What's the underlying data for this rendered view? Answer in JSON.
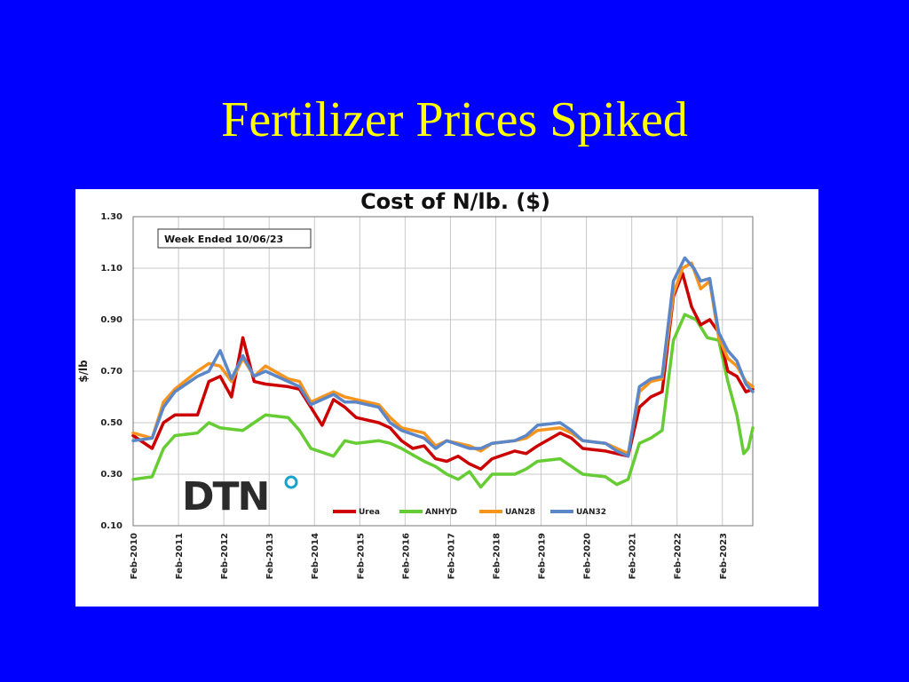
{
  "slide": {
    "title": "Fertilizer Prices Spiked",
    "background": "#0000ff",
    "title_color": "#ffff00"
  },
  "chart_data": {
    "type": "line",
    "title": "Cost of N/lb. ($)",
    "ylabel": "$/lb",
    "xlabel": "",
    "ylim": [
      0.1,
      1.3
    ],
    "y_ticks": [
      "1.30",
      "1.10",
      "0.90",
      "0.70",
      "0.50",
      "0.30",
      "0.10"
    ],
    "x_range": [
      2010.08,
      2023.75
    ],
    "x_ticks": [
      "Feb-2010",
      "Feb-2011",
      "Feb-2012",
      "Feb-2013",
      "Feb-2014",
      "Feb-2015",
      "Feb-2016",
      "Feb-2017",
      "Feb-2018",
      "Feb-2019",
      "Feb-2020",
      "Feb-2021",
      "Feb-2022",
      "Feb-2023"
    ],
    "annotation": "Week Ended 10/06/23",
    "logo": "DTN",
    "grid": true,
    "legend_position": "bottom-center",
    "series": [
      {
        "name": "Urea",
        "color": "#cc0000",
        "x": [
          2010.08,
          2010.5,
          2010.75,
          2011.0,
          2011.5,
          2011.75,
          2012.0,
          2012.25,
          2012.5,
          2012.75,
          2013.0,
          2013.5,
          2013.75,
          2014.0,
          2014.25,
          2014.5,
          2014.75,
          2015.0,
          2015.5,
          2015.75,
          2016.0,
          2016.25,
          2016.5,
          2016.75,
          2017.0,
          2017.25,
          2017.5,
          2017.75,
          2018.0,
          2018.5,
          2018.75,
          2019.0,
          2019.5,
          2019.75,
          2020.0,
          2020.5,
          2020.75,
          2021.0,
          2021.25,
          2021.5,
          2021.75,
          2022.0,
          2022.2,
          2022.4,
          2022.6,
          2022.8,
          2023.0,
          2023.2,
          2023.4,
          2023.6,
          2023.75
        ],
        "values": [
          0.45,
          0.4,
          0.5,
          0.53,
          0.53,
          0.66,
          0.68,
          0.6,
          0.83,
          0.66,
          0.65,
          0.64,
          0.63,
          0.56,
          0.49,
          0.59,
          0.56,
          0.52,
          0.5,
          0.48,
          0.43,
          0.4,
          0.41,
          0.36,
          0.35,
          0.37,
          0.34,
          0.32,
          0.36,
          0.39,
          0.38,
          0.41,
          0.46,
          0.44,
          0.4,
          0.39,
          0.38,
          0.37,
          0.56,
          0.6,
          0.62,
          0.99,
          1.08,
          0.95,
          0.88,
          0.9,
          0.85,
          0.7,
          0.68,
          0.62,
          0.63
        ]
      },
      {
        "name": "ANHYD",
        "color": "#66cc33",
        "x": [
          2010.08,
          2010.5,
          2010.75,
          2011.0,
          2011.5,
          2011.75,
          2012.0,
          2012.5,
          2012.75,
          2013.0,
          2013.5,
          2013.75,
          2014.0,
          2014.5,
          2014.75,
          2015.0,
          2015.5,
          2015.75,
          2016.0,
          2016.5,
          2016.75,
          2017.0,
          2017.25,
          2017.5,
          2017.75,
          2018.0,
          2018.5,
          2018.75,
          2019.0,
          2019.5,
          2019.75,
          2020.0,
          2020.5,
          2020.75,
          2021.0,
          2021.25,
          2021.5,
          2021.75,
          2022.0,
          2022.25,
          2022.5,
          2022.75,
          2023.0,
          2023.2,
          2023.4,
          2023.55,
          2023.65,
          2023.75
        ],
        "values": [
          0.28,
          0.29,
          0.4,
          0.45,
          0.46,
          0.5,
          0.48,
          0.47,
          0.5,
          0.53,
          0.52,
          0.47,
          0.4,
          0.37,
          0.43,
          0.42,
          0.43,
          0.42,
          0.4,
          0.35,
          0.33,
          0.3,
          0.28,
          0.31,
          0.25,
          0.3,
          0.3,
          0.32,
          0.35,
          0.36,
          0.33,
          0.3,
          0.29,
          0.26,
          0.28,
          0.42,
          0.44,
          0.47,
          0.82,
          0.92,
          0.9,
          0.83,
          0.82,
          0.66,
          0.53,
          0.38,
          0.4,
          0.48
        ]
      },
      {
        "name": "UAN28",
        "color": "#f7941d",
        "x": [
          2010.08,
          2010.5,
          2010.75,
          2011.0,
          2011.5,
          2011.75,
          2012.0,
          2012.25,
          2012.5,
          2012.75,
          2013.0,
          2013.5,
          2013.75,
          2014.0,
          2014.5,
          2014.75,
          2015.0,
          2015.5,
          2015.75,
          2016.0,
          2016.5,
          2016.75,
          2017.0,
          2017.5,
          2017.75,
          2018.0,
          2018.5,
          2018.75,
          2019.0,
          2019.5,
          2019.75,
          2020.0,
          2020.5,
          2020.75,
          2021.0,
          2021.25,
          2021.5,
          2021.75,
          2022.0,
          2022.2,
          2022.4,
          2022.6,
          2022.8,
          2023.0,
          2023.2,
          2023.4,
          2023.6,
          2023.75
        ],
        "values": [
          0.46,
          0.44,
          0.58,
          0.63,
          0.7,
          0.73,
          0.72,
          0.66,
          0.75,
          0.68,
          0.72,
          0.67,
          0.66,
          0.58,
          0.62,
          0.6,
          0.59,
          0.57,
          0.52,
          0.48,
          0.46,
          0.41,
          0.43,
          0.41,
          0.39,
          0.42,
          0.43,
          0.44,
          0.47,
          0.48,
          0.46,
          0.43,
          0.42,
          0.4,
          0.38,
          0.62,
          0.66,
          0.67,
          1.0,
          1.1,
          1.12,
          1.02,
          1.05,
          0.83,
          0.75,
          0.72,
          0.66,
          0.64
        ]
      },
      {
        "name": "UAN32",
        "color": "#5b86c8",
        "x": [
          2010.08,
          2010.5,
          2010.75,
          2011.0,
          2011.5,
          2011.75,
          2012.0,
          2012.25,
          2012.5,
          2012.75,
          2013.0,
          2013.5,
          2013.75,
          2014.0,
          2014.5,
          2014.75,
          2015.0,
          2015.5,
          2015.75,
          2016.0,
          2016.5,
          2016.75,
          2017.0,
          2017.5,
          2017.75,
          2018.0,
          2018.5,
          2018.75,
          2019.0,
          2019.5,
          2019.75,
          2020.0,
          2020.5,
          2020.75,
          2021.0,
          2021.25,
          2021.5,
          2021.75,
          2022.0,
          2022.25,
          2022.45,
          2022.6,
          2022.8,
          2023.0,
          2023.2,
          2023.4,
          2023.6,
          2023.75
        ],
        "values": [
          0.43,
          0.44,
          0.56,
          0.62,
          0.68,
          0.7,
          0.78,
          0.67,
          0.76,
          0.68,
          0.7,
          0.66,
          0.64,
          0.57,
          0.61,
          0.58,
          0.58,
          0.56,
          0.5,
          0.47,
          0.44,
          0.4,
          0.43,
          0.4,
          0.4,
          0.42,
          0.43,
          0.45,
          0.49,
          0.5,
          0.47,
          0.43,
          0.42,
          0.39,
          0.37,
          0.64,
          0.67,
          0.68,
          1.05,
          1.14,
          1.1,
          1.05,
          1.06,
          0.85,
          0.78,
          0.74,
          0.65,
          0.62
        ]
      }
    ]
  }
}
